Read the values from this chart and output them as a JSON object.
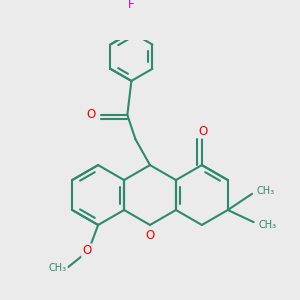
{
  "bg_color": "#ebebeb",
  "bond_color": "#2d8a6e",
  "heteroatom_color": "#ff0000",
  "fluorine_color": "#cc00cc",
  "bond_width": 1.5,
  "figsize": [
    3.0,
    3.0
  ],
  "dpi": 100,
  "xlim": [
    -1.6,
    1.6
  ],
  "ylim": [
    -1.5,
    1.7
  ]
}
